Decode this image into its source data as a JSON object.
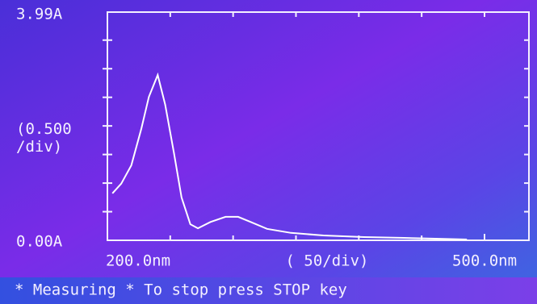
{
  "chart_data": {
    "type": "line",
    "x": [
      204,
      211,
      219,
      227,
      233,
      240,
      246,
      253,
      259,
      266,
      272,
      282,
      294,
      304,
      314,
      327,
      346,
      372,
      404,
      436,
      461,
      486
    ],
    "values": [
      0.82,
      0.99,
      1.31,
      1.95,
      2.51,
      2.89,
      2.37,
      1.52,
      0.75,
      0.28,
      0.21,
      0.32,
      0.41,
      0.41,
      0.32,
      0.2,
      0.13,
      0.085,
      0.056,
      0.042,
      0.028,
      0.014
    ],
    "color": "#ffffff",
    "xlim": [
      200,
      500
    ],
    "xticks": [
      {
        "value": 200,
        "label": "200.0nm"
      },
      {
        "value": 500,
        "label": "500.0nm"
      }
    ],
    "ylim": [
      0,
      3.99
    ],
    "yticks": [
      {
        "value": 0,
        "label": "0.00A"
      },
      {
        "value": 3.99,
        "label": "3.99A"
      }
    ],
    "y_division": {
      "value": 0.5,
      "label": "(0.500\n/div)"
    },
    "x_division": {
      "value": 50,
      "label": "( 50/div)"
    },
    "status": "* Measuring * To stop press STOP key"
  }
}
